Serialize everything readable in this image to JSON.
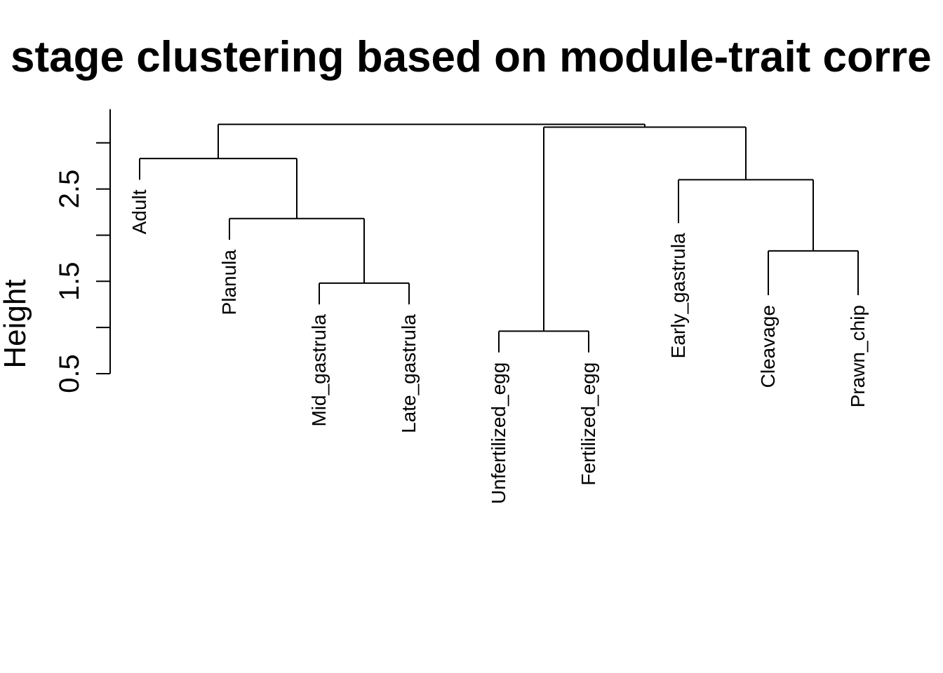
{
  "chart_data": {
    "type": "dendrogram",
    "title": "stage clustering based on module-trait corre",
    "ylabel": "Height",
    "xlabel": "",
    "yticks": [
      0.5,
      1.0,
      1.5,
      2.0,
      2.5,
      3.0
    ],
    "ytick_labels": [
      "0.5",
      "",
      "1.5",
      "",
      "2.5",
      ""
    ],
    "leaves": [
      {
        "label": "Adult",
        "height": 2.6
      },
      {
        "label": "Planula",
        "height": 1.95
      },
      {
        "label": "Mid_gastrula",
        "height": 1.25
      },
      {
        "label": "Late_gastrula",
        "height": 1.25
      },
      {
        "label": "Unfertilized_egg",
        "height": 0.73
      },
      {
        "label": "Fertilized_egg",
        "height": 0.73
      },
      {
        "label": "Early_gastrula",
        "height": 2.13
      },
      {
        "label": "Cleavage",
        "height": 1.35
      },
      {
        "label": "Prawn_chip",
        "height": 1.35
      }
    ],
    "merges": [
      {
        "left": "Mid_gastrula",
        "right": "Late_gastrula",
        "height": 1.48
      },
      {
        "left": "Unfertilized_egg",
        "right": "Fertilized_egg",
        "height": 0.96
      },
      {
        "left": "Cleavage",
        "right": "Prawn_chip",
        "height": 1.83
      },
      {
        "left": "Planula",
        "right": "Mid_gastrula+Late_gastrula",
        "height": 2.18
      },
      {
        "left": "Early_gastrula",
        "right": "Cleavage+Prawn_chip",
        "height": 2.6
      },
      {
        "left": "Adult",
        "right": "Planula+Mid_gastrula+Late_gastrula",
        "height": 2.83
      },
      {
        "left": "Unfertilized_egg+Fertilized_egg",
        "right": "Early_gastrula+Cleavage+Prawn_chip",
        "height": 3.17
      },
      {
        "left": "Adult+Planula+Mid_gastrula+Late_gastrula",
        "right": "Unfertilized_egg+Fertilized_egg+Early_gastrula+Cleavage+Prawn_chip",
        "height": 3.2
      }
    ]
  }
}
